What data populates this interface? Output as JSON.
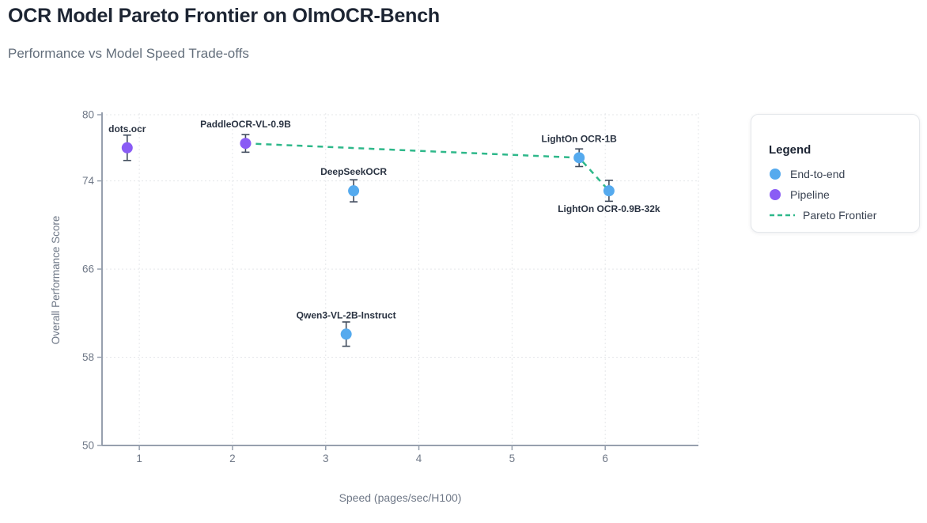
{
  "chart_data": {
    "type": "scatter",
    "title": "OCR Model Pareto Frontier on OlmOCR-Bench",
    "subtitle": "Performance vs Model Speed Trade-offs",
    "xlabel": "Speed (pages/sec/H100)",
    "ylabel": "Overall Performance Score",
    "xlim": [
      0.6,
      7.0
    ],
    "ylim": [
      50,
      80
    ],
    "xticks": [
      1,
      2,
      3,
      4,
      5,
      6
    ],
    "yticks": [
      80,
      74,
      66,
      58,
      50
    ],
    "grid": true,
    "legend_position": "right",
    "series": [
      {
        "name": "End-to-end",
        "color": "#55aaee",
        "points": [
          {
            "label": "DeepSeekOCR",
            "x": 3.3,
            "y": 73.1,
            "err": 1.0,
            "label_pos": "above"
          },
          {
            "label": "Qwen3-VL-2B-Instruct",
            "x": 3.22,
            "y": 60.1,
            "err": 1.1,
            "label_pos": "above"
          },
          {
            "label": "LightOn OCR-1B",
            "x": 5.72,
            "y": 76.1,
            "err": 0.8,
            "label_pos": "above"
          },
          {
            "label": "LightOn OCR-0.9B-32k",
            "x": 6.04,
            "y": 73.1,
            "err": 0.95,
            "label_pos": "below"
          }
        ]
      },
      {
        "name": "Pipeline",
        "color": "#8a5cf5",
        "points": [
          {
            "label": "dots.ocr",
            "x": 0.87,
            "y": 77.0,
            "err": 1.15,
            "label_pos": "above"
          },
          {
            "label": "PaddleOCR-VL-0.9B",
            "x": 2.14,
            "y": 77.4,
            "err": 0.8,
            "label_pos": "above"
          }
        ]
      }
    ],
    "pareto_frontier": {
      "name": "Pareto Frontier",
      "color": "#2eb88a",
      "style": "dashed",
      "points": [
        [
          2.14,
          77.4
        ],
        [
          5.72,
          76.1
        ],
        [
          6.04,
          73.1
        ]
      ]
    },
    "legend": {
      "title": "Legend",
      "items": [
        {
          "label": "End-to-end",
          "swatch": "dot",
          "color": "#55aaee"
        },
        {
          "label": "Pipeline",
          "swatch": "dot",
          "color": "#8a5cf5"
        },
        {
          "label": "Pareto Frontier",
          "swatch": "dash",
          "color": "#2eb88a"
        }
      ]
    },
    "colors": {
      "grid": "#e5e7ea",
      "spine": "#97a0ae",
      "tick_text": "#6f7887",
      "axis_title": "#6f7887",
      "error_bar": "#414c5d",
      "point_label": "#2a3342",
      "title": "#1d2533",
      "subtitle": "#636e7b"
    }
  }
}
